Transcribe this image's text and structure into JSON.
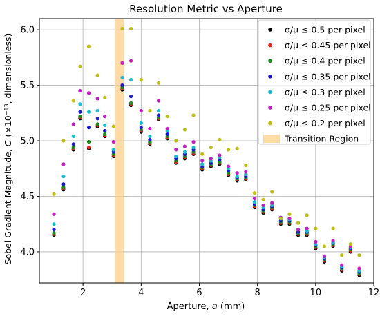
{
  "chart_data": {
    "type": "scatter",
    "title": "Resolution Metric vs Aperture",
    "xlabel": "Aperture, $a$ (mm)",
    "ylabel": "Sobel Gradient Magnitude, $G$ ($\\times10^{-13}$, dimensionless)",
    "xlim": [
      0.5,
      12.0
    ],
    "ylim": [
      3.72,
      6.1
    ],
    "xticks": [
      2,
      4,
      6,
      8,
      10,
      12
    ],
    "yticks": [
      4.0,
      4.5,
      5.0,
      5.5,
      6.0
    ],
    "grid": true,
    "legend_position": "top-right",
    "x": [
      1.0,
      1.33,
      1.67,
      1.9,
      2.2,
      2.5,
      2.75,
      3.05,
      3.35,
      3.65,
      4.0,
      4.3,
      4.6,
      4.9,
      5.2,
      5.5,
      5.8,
      6.1,
      6.4,
      6.7,
      7.0,
      7.3,
      7.6,
      7.9,
      8.2,
      8.5,
      8.8,
      9.1,
      9.4,
      9.7,
      10.0,
      10.3,
      10.6,
      10.9,
      11.2,
      11.5
    ],
    "series": [
      {
        "name": "σ/μ ≤ 0.5 per pixel",
        "color": "#000000",
        "values": [
          4.15,
          4.56,
          4.92,
          5.2,
          4.93,
          5.13,
          5.04,
          4.86,
          5.46,
          5.32,
          5.08,
          4.97,
          5.19,
          5.02,
          4.8,
          4.84,
          4.88,
          4.74,
          4.77,
          4.79,
          4.69,
          4.64,
          4.65,
          4.4,
          4.35,
          4.38,
          4.25,
          4.25,
          4.15,
          4.15,
          4.03,
          3.91,
          4.05,
          3.83,
          4.0,
          3.79
        ]
      },
      {
        "name": "σ/μ ≤ 0.45 per pixel",
        "color": "#e8251d",
        "values": [
          4.16,
          4.57,
          4.93,
          5.21,
          4.94,
          5.14,
          5.05,
          4.87,
          5.47,
          5.33,
          5.09,
          4.98,
          5.2,
          5.03,
          4.81,
          4.85,
          4.89,
          4.75,
          4.78,
          4.8,
          4.7,
          4.65,
          4.66,
          4.41,
          4.36,
          4.39,
          4.26,
          4.26,
          4.16,
          4.16,
          4.04,
          3.92,
          4.06,
          3.84,
          4.01,
          3.8
        ]
      },
      {
        "name": "σ/μ ≤ 0.4 per pixel",
        "color": "#1a8a1a",
        "values": [
          4.17,
          4.58,
          4.94,
          5.22,
          4.99,
          5.15,
          5.06,
          4.88,
          5.48,
          5.34,
          5.1,
          4.99,
          5.21,
          5.04,
          4.82,
          4.86,
          4.9,
          4.76,
          4.79,
          4.81,
          4.71,
          4.66,
          4.67,
          4.42,
          4.37,
          4.4,
          4.27,
          4.27,
          4.17,
          4.17,
          4.05,
          3.93,
          4.07,
          3.85,
          4.02,
          3.81
        ]
      },
      {
        "name": "σ/μ ≤ 0.35 per pixel",
        "color": "#1a1ad6",
        "values": [
          4.2,
          4.61,
          4.97,
          5.26,
          5.12,
          5.2,
          5.09,
          4.9,
          5.5,
          5.4,
          5.12,
          5.01,
          5.23,
          5.06,
          4.84,
          4.88,
          4.92,
          4.77,
          4.8,
          4.83,
          4.73,
          4.67,
          4.68,
          4.43,
          4.38,
          4.41,
          4.28,
          4.28,
          4.18,
          4.18,
          4.06,
          3.94,
          4.08,
          3.86,
          4.03,
          3.82
        ]
      },
      {
        "name": "σ/μ ≤ 0.3 per pixel",
        "color": "#19bfcc",
        "values": [
          4.25,
          4.68,
          5.04,
          5.33,
          5.26,
          5.27,
          5.14,
          4.92,
          5.57,
          5.55,
          5.16,
          5.04,
          5.27,
          5.09,
          4.86,
          4.9,
          4.94,
          4.79,
          4.82,
          4.85,
          4.75,
          4.68,
          4.7,
          4.45,
          4.4,
          4.42,
          4.3,
          4.29,
          4.2,
          4.19,
          4.07,
          3.95,
          4.09,
          3.87,
          4.04,
          3.83
        ]
      },
      {
        "name": "σ/μ ≤ 0.25 per pixel",
        "color": "#c21fc2",
        "values": [
          4.34,
          4.79,
          5.15,
          5.45,
          5.43,
          5.38,
          5.22,
          4.99,
          5.7,
          5.72,
          5.27,
          5.11,
          5.36,
          5.11,
          4.92,
          4.95,
          4.99,
          4.82,
          4.84,
          4.87,
          4.77,
          4.71,
          4.72,
          4.48,
          4.42,
          4.44,
          4.31,
          4.3,
          4.2,
          4.21,
          4.09,
          3.96,
          4.1,
          3.88,
          4.05,
          3.85
        ]
      },
      {
        "name": "σ/μ ≤ 0.2 per pixel",
        "color": "#bdbd12",
        "values": [
          4.52,
          5.0,
          5.36,
          5.67,
          5.85,
          5.59,
          5.39,
          5.13,
          6.01,
          6.01,
          5.55,
          5.27,
          5.52,
          5.22,
          5.0,
          5.1,
          5.23,
          4.88,
          4.94,
          5.01,
          4.92,
          4.93,
          4.78,
          4.53,
          4.47,
          4.54,
          4.3,
          4.34,
          4.26,
          4.33,
          4.21,
          4.05,
          4.21,
          3.97,
          4.07,
          3.97
        ]
      }
    ],
    "transition_region": {
      "name": "Transition Region",
      "x_start": 3.1,
      "x_end": 3.4,
      "color": "#ffd08a"
    }
  }
}
